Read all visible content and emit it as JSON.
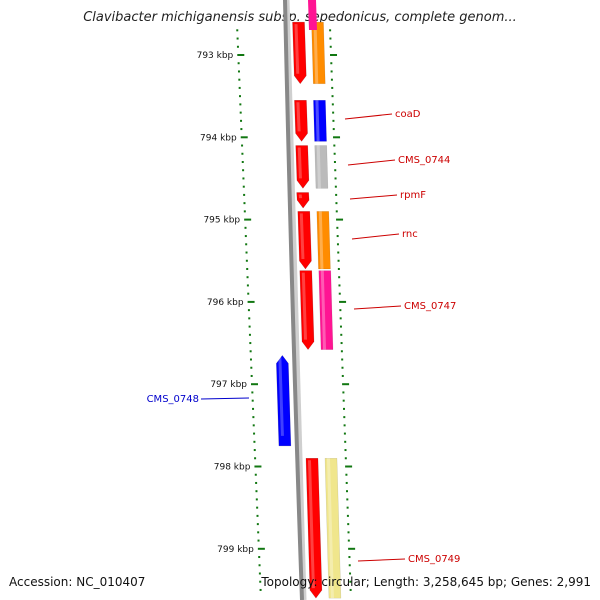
{
  "title": "Clavibacter michiganensis subsp. sepedonicus, complete genom...",
  "footer": {
    "accession": "Accession: NC_010407",
    "topology": "Topology: circular; Length: 3,258,645 bp; Genes: 2,991"
  },
  "axis": {
    "unit": "kbp",
    "ticks": [
      {
        "label": "793 kbp",
        "kbp": 793
      },
      {
        "label": "794 kbp",
        "kbp": 794
      },
      {
        "label": "795 kbp",
        "kbp": 795
      },
      {
        "label": "796 kbp",
        "kbp": 796
      },
      {
        "label": "797 kbp",
        "kbp": 797
      },
      {
        "label": "798 kbp",
        "kbp": 798
      },
      {
        "label": "799 kbp",
        "kbp": 799
      }
    ]
  },
  "colors": {
    "gene": "#ff0000",
    "backbone": "#888888",
    "tick": "#117711",
    "label_forward": "#cc0000",
    "label_reverse": "#0000cc",
    "cog_blue": "#0000ff",
    "cog_gray": "#bbbbbb",
    "cog_orange": "#ff8c00",
    "cog_pink": "#ff1493",
    "cog_khaki": "#f0e68c"
  },
  "genes": [
    {
      "name": "",
      "strand": "+",
      "start": 792.6,
      "end": 793.35,
      "cog_color": "#ff8c00"
    },
    {
      "name": "coaD",
      "strand": "+",
      "start": 793.55,
      "end": 794.05,
      "cog_color": "#0000ff"
    },
    {
      "name": "CMS_0744",
      "strand": "+",
      "start": 794.1,
      "end": 794.62,
      "cog_color": "#bbbbbb"
    },
    {
      "name": "rpmF",
      "strand": "+",
      "start": 794.67,
      "end": 794.86,
      "cog_color": ""
    },
    {
      "name": "rnc",
      "strand": "+",
      "start": 794.9,
      "end": 795.6,
      "cog_color": "#ff8c00"
    },
    {
      "name": "CMS_0747",
      "strand": "+",
      "start": 795.62,
      "end": 796.58,
      "cog_color": "#ff1493"
    },
    {
      "name": "CMS_0748",
      "strand": "-",
      "start": 796.65,
      "end": 797.75,
      "cog_color": ""
    },
    {
      "name": "CMS_0749",
      "strand": "+",
      "start": 797.9,
      "end": 799.6,
      "cog_color": "#f0e68c"
    }
  ]
}
